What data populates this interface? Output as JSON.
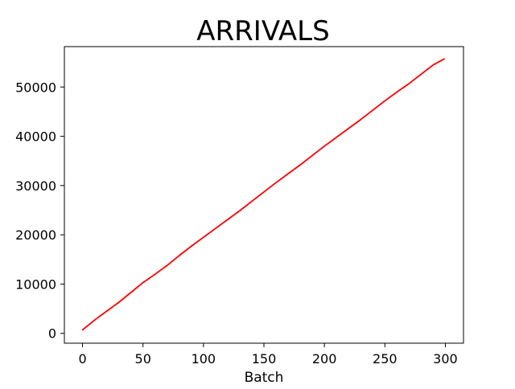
{
  "chart_data": {
    "type": "line",
    "title": "ARRIVALS",
    "xlabel": "Batch",
    "ylabel": "",
    "xlim": [
      -15,
      315
    ],
    "ylim": [
      -2000,
      58200
    ],
    "xticks": [
      0,
      50,
      100,
      150,
      200,
      250,
      300
    ],
    "yticks": [
      0,
      10000,
      20000,
      30000,
      40000,
      50000
    ],
    "grid": false,
    "series": [
      {
        "color": "#ff0000",
        "x": [
          0,
          10,
          20,
          30,
          40,
          50,
          60,
          70,
          80,
          90,
          100,
          110,
          120,
          130,
          140,
          150,
          160,
          170,
          180,
          190,
          200,
          210,
          220,
          230,
          240,
          250,
          260,
          270,
          280,
          290,
          299
        ],
        "y": [
          700,
          2700,
          4500,
          6300,
          8300,
          10300,
          12000,
          13800,
          15800,
          17700,
          19500,
          21300,
          23100,
          24900,
          26800,
          28700,
          30600,
          32400,
          34200,
          36100,
          38000,
          39800,
          41600,
          43400,
          45300,
          47200,
          49000,
          50700,
          52600,
          54500,
          55700
        ]
      }
    ]
  }
}
